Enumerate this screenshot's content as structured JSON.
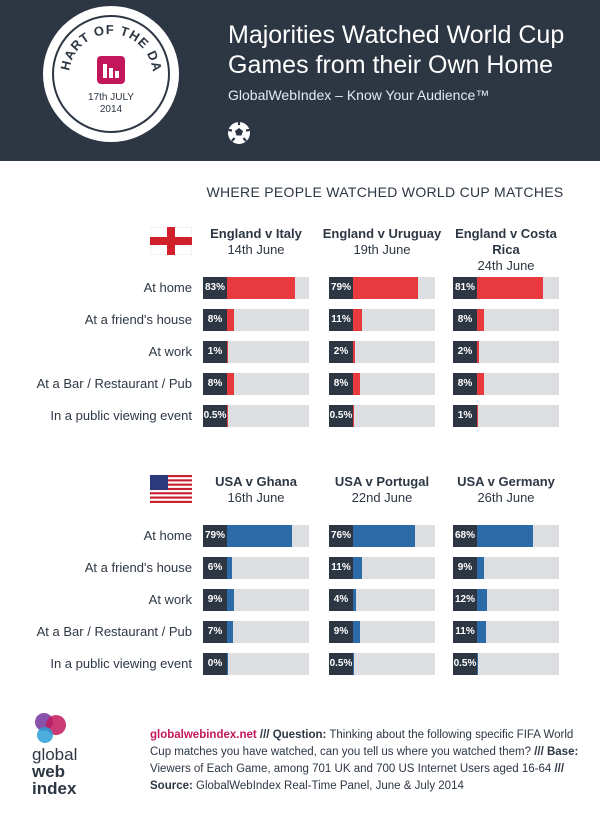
{
  "header": {
    "badge": {
      "line1": "CHART OF THE DAY",
      "date": "17th JULY",
      "year": "2014"
    },
    "title_line1": "Majorities Watched World Cup",
    "title_line2": "Games from their Own Home",
    "subtitle": "GlobalWebIndex – Know Your Audience™"
  },
  "colors": {
    "header_bg": "#2d3744",
    "england": "#e8393f",
    "usa": "#2c6aa8",
    "track": "#dcdee1",
    "accent": "#c2185b"
  },
  "chart_data": [
    {
      "type": "bar",
      "title": "WHERE PEOPLE WATCHED WORLD CUP MATCHES",
      "flag": "england-flag",
      "categories": [
        "At home",
        "At a friend's house",
        "At work",
        "At a Bar / Restaurant / Pub",
        "In a public viewing event"
      ],
      "series": [
        {
          "name": "England v Italy",
          "date": "14th June",
          "values": [
            83,
            8,
            1,
            8,
            0.5
          ]
        },
        {
          "name": "England v Uruguay",
          "date": "19th June",
          "values": [
            79,
            11,
            2,
            8,
            0.5
          ]
        },
        {
          "name": "England v Costa Rica",
          "date": "24th June",
          "values": [
            81,
            8,
            2,
            8,
            1
          ]
        }
      ],
      "ylim": [
        0,
        100
      ]
    },
    {
      "type": "bar",
      "flag": "usa-flag",
      "categories": [
        "At home",
        "At a friend's house",
        "At work",
        "At a Bar / Restaurant / Pub",
        "In a public viewing event"
      ],
      "series": [
        {
          "name": "USA v Ghana",
          "date": "16th June",
          "values": [
            79,
            6,
            9,
            7,
            0
          ]
        },
        {
          "name": "USA v Portugal",
          "date": "22nd June",
          "values": [
            76,
            11,
            4,
            9,
            0.5
          ]
        },
        {
          "name": "USA v Germany",
          "date": "26th June",
          "values": [
            68,
            9,
            12,
            11,
            0.5
          ]
        }
      ],
      "ylim": [
        0,
        100
      ]
    }
  ],
  "footer": {
    "logo_line1": "global",
    "logo_line2": "web",
    "logo_line3": "index",
    "site": "globalwebindex.net",
    "sep1": " /// ",
    "question_label": "Question:",
    "question": " Thinking about the following specific FIFA World Cup matches you have watched, can you tell us where you watched them?",
    "sep2": " /// ",
    "base_label": "Base:",
    "base": " Viewers of Each Game, among 701 UK and 700 US Internet Users aged 16-64",
    "sep3": " /// ",
    "source_label": "Source:",
    "source": " GlobalWebIndex Real-Time Panel, June & July 2014"
  }
}
